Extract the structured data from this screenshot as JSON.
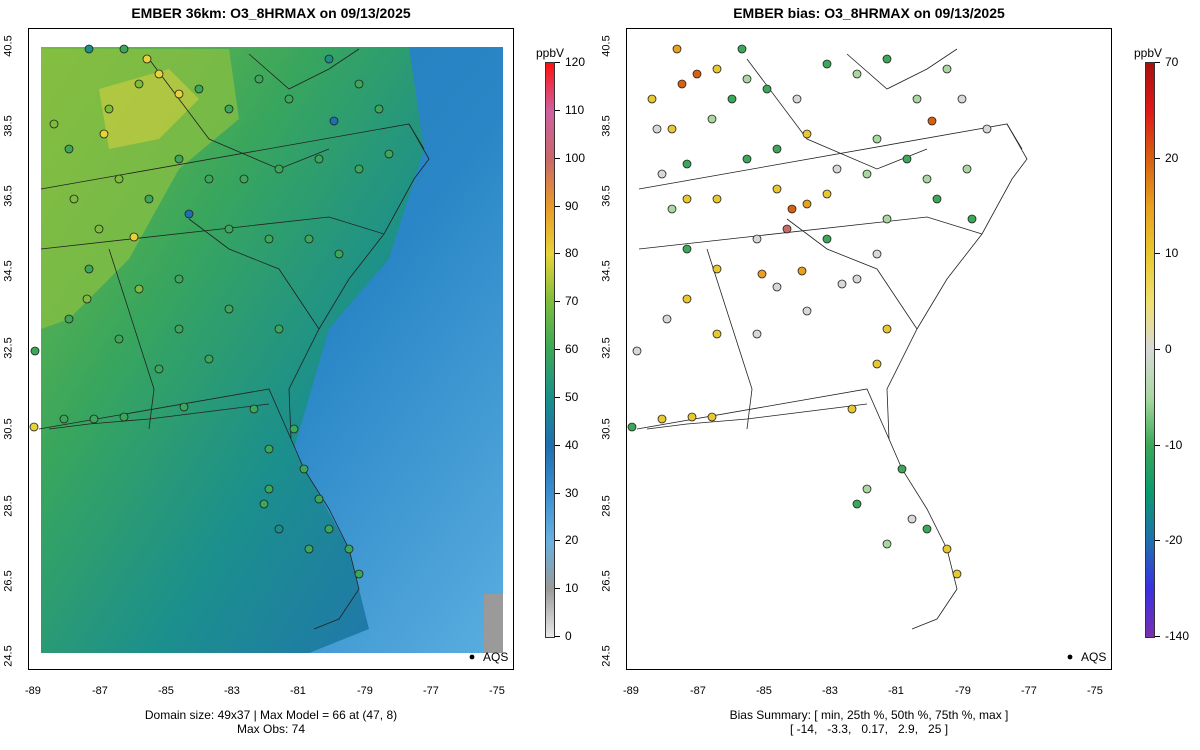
{
  "left_panel": {
    "title": "EMBER 36km: O3_8HRMAX on 09/13/2025",
    "footer_line1": "Domain size: 49x37 | Max Model = 66 at (47, 8)",
    "footer_line2": "Max Obs: 74",
    "legend_label": "AQS",
    "colorbar_unit": "ppbV",
    "colorbar_ticks": [
      "120",
      "110",
      "100",
      "90",
      "80",
      "70",
      "60",
      "50",
      "40",
      "30",
      "20",
      "10",
      "0"
    ],
    "colorbar_colors": [
      "#e8e8e8",
      "#9a9a9a",
      "#6ab0e0",
      "#3a8fd0",
      "#1f6fb0",
      "#1a8f8a",
      "#3aa858",
      "#7cbd3c",
      "#e8d23a",
      "#e89a2a",
      "#c8686a",
      "#d060a0",
      "#ff1010"
    ]
  },
  "right_panel": {
    "title": "EMBER bias: O3_8HRMAX on 09/13/2025",
    "footer_line1": "Bias Summary: [ min, 25th %, 50th %, 75th %, max ]",
    "footer_line2": "[ -14,   -3.3,   0.17,   2.9,   25 ]",
    "legend_label": "AQS",
    "colorbar_unit": "ppbV",
    "colorbar_ticks": [
      "70",
      "20",
      "10",
      "0",
      "-10",
      "-20",
      "-140"
    ],
    "colorbar_colors": [
      "#7a2fb0",
      "#3a30e0",
      "#1f6fb0",
      "#0a9a70",
      "#3aa858",
      "#a8d8a0",
      "#d8d8d8",
      "#f0e070",
      "#e8c830",
      "#e8a020",
      "#d86010",
      "#e01818",
      "#a81010"
    ]
  },
  "axes": {
    "x_ticks": [
      "-89",
      "-87",
      "-85",
      "-83",
      "-81",
      "-79",
      "-77",
      "-75"
    ],
    "y_ticks": [
      "40.5",
      "38.5",
      "36.5",
      "34.5",
      "32.5",
      "30.5",
      "28.5",
      "26.5",
      "24.5"
    ]
  },
  "icons": {
    "aqs_marker": "filled-dot-icon"
  }
}
